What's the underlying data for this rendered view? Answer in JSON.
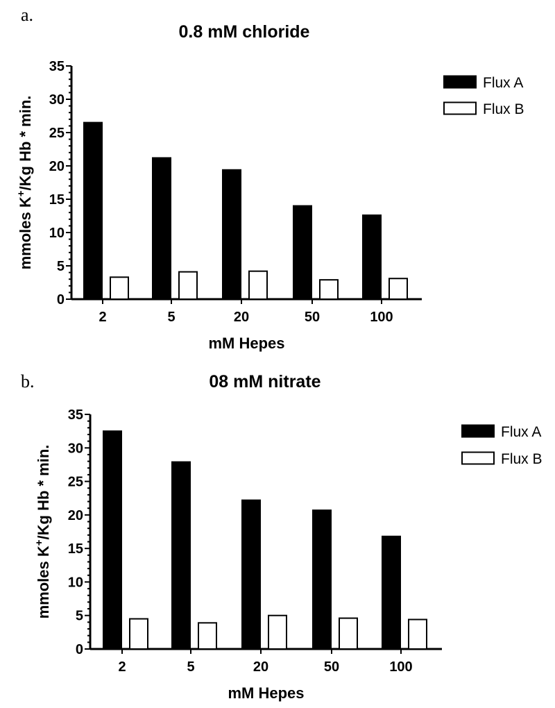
{
  "chart_data": [
    {
      "panel": "a.",
      "type": "bar",
      "title": "0.8 mM chloride",
      "xlabel": "mM Hepes",
      "ylabel_main": "mmoles K",
      "ylabel_sup": "+",
      "ylabel_rest": "/Kg Hb * min.",
      "ylim": [
        0,
        35
      ],
      "yticks": [
        "0",
        "5",
        "10",
        "15",
        "20",
        "25",
        "30",
        "35"
      ],
      "categories": [
        "2",
        "5",
        "20",
        "50",
        "100"
      ],
      "series": [
        {
          "name": "Flux A",
          "color": "#000000",
          "values": [
            26.5,
            21.2,
            19.4,
            14.0,
            12.6
          ]
        },
        {
          "name": "Flux B",
          "color": "#ffffff",
          "values": [
            3.3,
            4.1,
            4.2,
            2.9,
            3.1
          ]
        }
      ],
      "legend_position": "top-right",
      "grid": false
    },
    {
      "panel": "b.",
      "type": "bar",
      "title": "08 mM nitrate",
      "xlabel": "mM Hepes",
      "ylabel_main": "mmoles K",
      "ylabel_sup": "+",
      "ylabel_rest": "/Kg Hb * min.",
      "ylim": [
        0,
        35
      ],
      "yticks": [
        "0",
        "5",
        "10",
        "15",
        "20",
        "25",
        "30",
        "35"
      ],
      "categories": [
        "2",
        "5",
        "20",
        "50",
        "100"
      ],
      "series": [
        {
          "name": "Flux A",
          "color": "#000000",
          "values": [
            32.5,
            27.9,
            22.2,
            20.7,
            16.8
          ]
        },
        {
          "name": "Flux B",
          "color": "#ffffff",
          "values": [
            4.5,
            3.9,
            5.0,
            4.6,
            4.4
          ]
        }
      ],
      "legend_position": "top-right",
      "grid": false
    }
  ]
}
